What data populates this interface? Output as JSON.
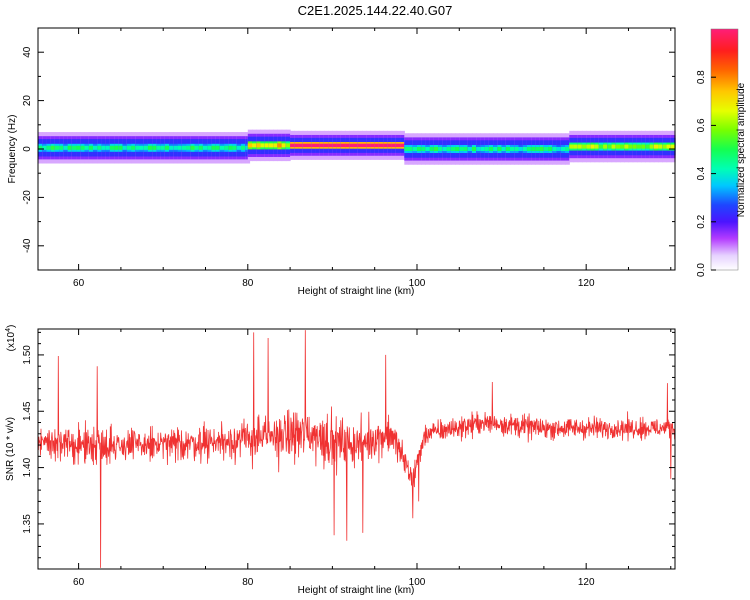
{
  "chart_data": [
    {
      "type": "heatmap",
      "title": "C2E1.2025.144.22.40.G07",
      "xlabel": "Height of straight line (km)",
      "ylabel": "Frequency (Hz)",
      "xlim": [
        55.2,
        130.5
      ],
      "ylim": [
        -50,
        50
      ],
      "xticks": [
        60,
        80,
        100,
        120
      ],
      "yticks": [
        -40,
        -20,
        0,
        20,
        40
      ],
      "colorbar": {
        "label": "Normalized spectral amplitude",
        "ticks": [
          "0.0",
          "0.2",
          "0.4",
          "0.6",
          "0.8"
        ],
        "range": [
          0,
          1
        ]
      },
      "band": {
        "segments": [
          {
            "x": [
              55.2,
              80
            ],
            "freq_center": 0.5,
            "halfwidth": 3,
            "peak_amplitude": 0.45
          },
          {
            "x": [
              80,
              85
            ],
            "freq_center": 1.5,
            "halfwidth": 3,
            "peak_amplitude": 0.7
          },
          {
            "x": [
              85,
              98.5
            ],
            "freq_center": 1.5,
            "halfwidth": 2.5,
            "peak_amplitude": 1.0
          },
          {
            "x": [
              98.5,
              118
            ],
            "freq_center": 0,
            "halfwidth": 3,
            "peak_amplitude": 0.45
          },
          {
            "x": [
              118,
              130.5
            ],
            "freq_center": 1,
            "halfwidth": 3,
            "peak_amplitude": 0.6
          }
        ]
      }
    },
    {
      "type": "line",
      "xlabel": "Height of straight line (km)",
      "ylabel": "SNR (10 * v/v)",
      "yscale_label": "(x10",
      "yscale_exponent": "4",
      "xlim": [
        55.2,
        130.5
      ],
      "ylim": [
        1.31,
        1.523
      ],
      "xticks": [
        60,
        80,
        100,
        120
      ],
      "yticks": [
        "1.35",
        "1.40",
        "1.45",
        "1.50"
      ],
      "color": "#f03232",
      "series": {
        "sample_step_km": 0.05,
        "envelope": [
          {
            "x": 55.2,
            "mean": 1.425,
            "amp": 0.025
          },
          {
            "x": 58,
            "mean": 1.42,
            "amp": 0.03
          },
          {
            "x": 62.6,
            "mean": 1.42,
            "amp": 0.035
          },
          {
            "x": 70,
            "mean": 1.42,
            "amp": 0.03
          },
          {
            "x": 80,
            "mean": 1.425,
            "amp": 0.04
          },
          {
            "x": 87,
            "mean": 1.43,
            "amp": 0.05
          },
          {
            "x": 92,
            "mean": 1.42,
            "amp": 0.045
          },
          {
            "x": 97,
            "mean": 1.43,
            "amp": 0.035
          },
          {
            "x": 99.5,
            "mean": 1.39,
            "amp": 0.03
          },
          {
            "x": 101,
            "mean": 1.43,
            "amp": 0.02
          },
          {
            "x": 108,
            "mean": 1.44,
            "amp": 0.022
          },
          {
            "x": 115,
            "mean": 1.435,
            "amp": 0.02
          },
          {
            "x": 130.5,
            "mean": 1.435,
            "amp": 0.02
          }
        ],
        "extremes": [
          {
            "x": 57.6,
            "y": 1.499
          },
          {
            "x": 62.6,
            "y": 1.311
          },
          {
            "x": 62.2,
            "y": 1.49
          },
          {
            "x": 80.7,
            "y": 1.52
          },
          {
            "x": 82.4,
            "y": 1.515
          },
          {
            "x": 86.8,
            "y": 1.522
          },
          {
            "x": 90.2,
            "y": 1.34
          },
          {
            "x": 91.7,
            "y": 1.335
          },
          {
            "x": 93.6,
            "y": 1.342
          },
          {
            "x": 96.3,
            "y": 1.5
          },
          {
            "x": 99.5,
            "y": 1.355
          },
          {
            "x": 100.2,
            "y": 1.37
          },
          {
            "x": 108.9,
            "y": 1.476
          },
          {
            "x": 129.6,
            "y": 1.475
          },
          {
            "x": 130.0,
            "y": 1.39
          }
        ]
      }
    }
  ]
}
